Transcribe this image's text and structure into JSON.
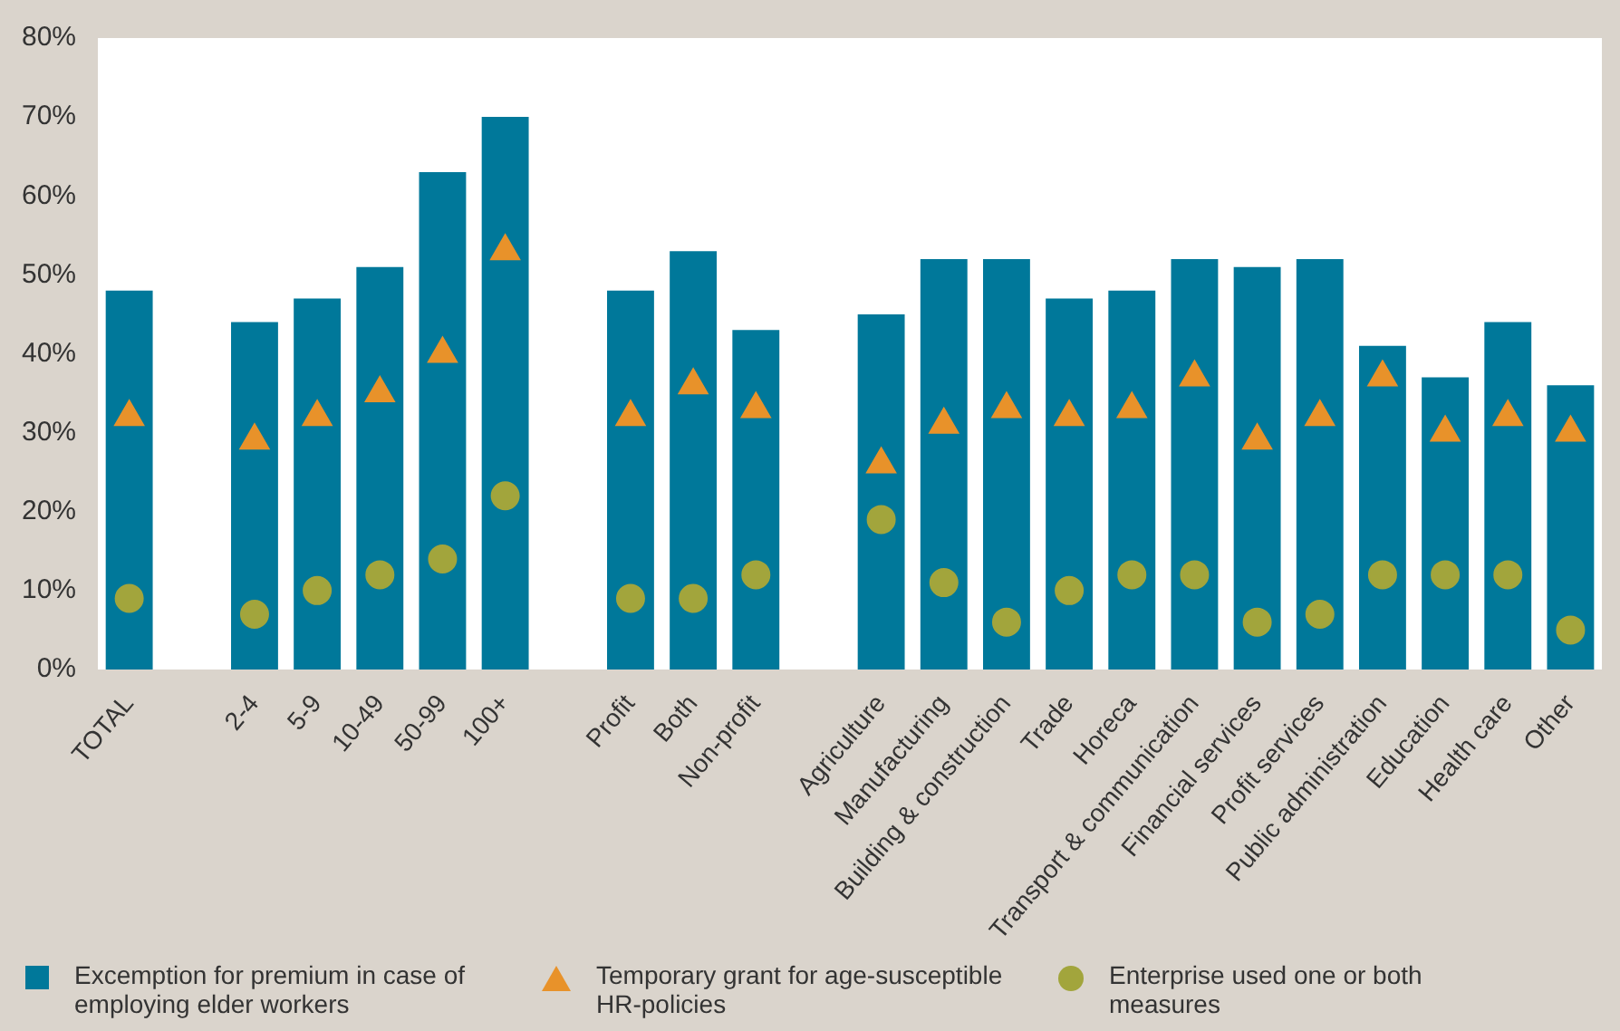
{
  "chart_data": {
    "type": "bar",
    "categories": [
      "TOTAL",
      null,
      "2-4",
      "5-9",
      "10-49",
      "50-99",
      "100+",
      null,
      "Profit",
      "Both",
      "Non-profit",
      null,
      "Agriculture",
      "Manufacturing",
      "Building & construction",
      "Trade",
      "Horeca",
      "Transport & communication",
      "Financial services",
      "Profit services",
      "Public administration",
      "Education",
      "Health care",
      "Other"
    ],
    "series": [
      {
        "name": "Excemption for premium in case of employing elder workers",
        "color": "#00789a",
        "values": [
          48,
          null,
          44,
          47,
          51,
          63,
          70,
          null,
          48,
          53,
          43,
          null,
          45,
          52,
          52,
          47,
          48,
          52,
          51,
          52,
          41,
          37,
          44,
          36
        ]
      },
      {
        "name": "Temporary grant for age-susceptible HR-policies",
        "type": "scatter",
        "marker": "triangle",
        "color": "#e8922a",
        "values": [
          32,
          null,
          29,
          32,
          35,
          40,
          53,
          null,
          32,
          36,
          33,
          null,
          26,
          31,
          33,
          32,
          33,
          37,
          29,
          32,
          37,
          30,
          32,
          30
        ]
      },
      {
        "name": "Enterprise used one or both measures",
        "type": "scatter",
        "marker": "circle",
        "color": "#a2a53c",
        "values": [
          9,
          null,
          7,
          10,
          12,
          14,
          22,
          null,
          9,
          9,
          12,
          null,
          19,
          11,
          6,
          10,
          12,
          12,
          6,
          7,
          12,
          12,
          12,
          5
        ]
      }
    ],
    "ylim": [
      0,
      80
    ],
    "yticks": [
      {
        "value": 0,
        "label": "0%"
      },
      {
        "value": 10,
        "label": "10%"
      },
      {
        "value": 20,
        "label": "20%"
      },
      {
        "value": 30,
        "label": "30%"
      },
      {
        "value": 40,
        "label": "40%"
      },
      {
        "value": 50,
        "label": "50%"
      },
      {
        "value": 60,
        "label": "60%"
      },
      {
        "value": 70,
        "label": "70%"
      },
      {
        "value": 80,
        "label": "80%"
      }
    ],
    "grid": false,
    "legend": "bottom"
  }
}
